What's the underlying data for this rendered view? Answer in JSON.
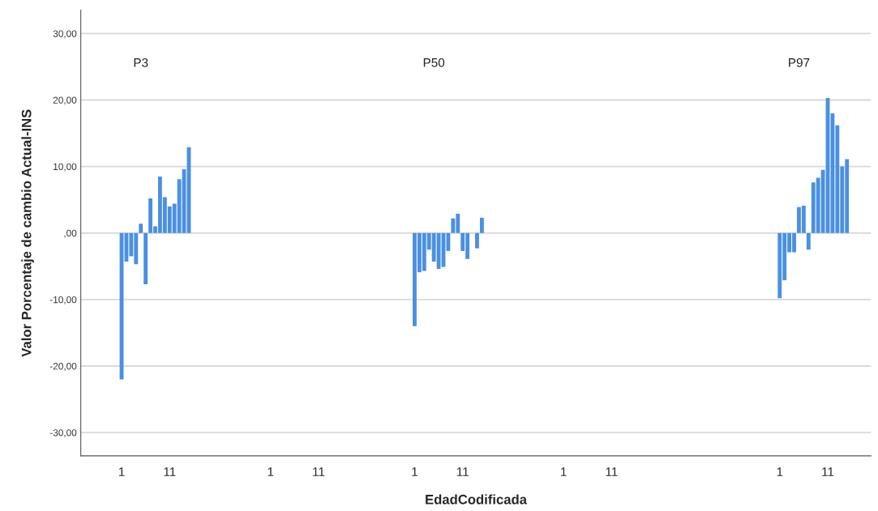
{
  "chart_data": {
    "type": "bar",
    "xlabel": "EdadCodificada",
    "ylabel": "Valor Porcentaje de cambio Actual-INS",
    "annotations": [
      "P3",
      "P50",
      "P97"
    ],
    "categories": [
      "1",
      null,
      null,
      null,
      null,
      null,
      null,
      null,
      null,
      null,
      "11",
      null,
      null,
      null,
      null,
      null,
      null,
      null,
      null,
      null,
      null,
      null,
      null,
      null,
      null,
      null,
      null,
      null,
      null,
      null,
      null,
      "1",
      null,
      null,
      null,
      null,
      null,
      null,
      null,
      null,
      null,
      "11",
      null,
      null,
      null,
      null,
      null,
      null,
      null,
      null,
      null,
      null,
      null,
      null,
      null,
      null,
      null,
      null,
      null,
      null,
      null,
      "1",
      null,
      null,
      null,
      null,
      null,
      null,
      null,
      null,
      null,
      "11",
      null,
      null,
      null,
      null,
      null,
      null,
      null,
      null,
      null,
      null,
      null,
      null,
      null,
      null,
      null,
      null,
      null,
      null,
      null,
      null,
      "1",
      null,
      null,
      null,
      null,
      null,
      null,
      null,
      null,
      null,
      "11",
      null,
      null,
      null,
      null,
      null,
      null,
      null,
      null,
      null,
      null,
      null,
      null,
      null,
      null,
      null,
      null,
      null,
      null,
      null,
      null,
      null,
      null,
      null,
      null,
      null,
      null,
      null,
      null,
      null,
      null,
      null,
      null,
      null,
      null,
      "1",
      null,
      null,
      null,
      null,
      null,
      null,
      null,
      null,
      null,
      "11",
      null,
      null,
      null,
      null
    ],
    "series": [
      {
        "color": "#4a90e2",
        "values": [
          -22.0,
          -4.3,
          -3.5,
          -4.7,
          1.4,
          -7.7,
          5.2,
          1.0,
          8.5,
          5.4,
          4.0,
          4.4,
          8.1,
          9.6,
          12.9,
          null,
          null,
          null,
          null,
          null,
          null,
          null,
          null,
          null,
          null,
          null,
          null,
          null,
          null,
          null,
          null,
          null,
          null,
          null,
          null,
          null,
          null,
          null,
          null,
          null,
          null,
          null,
          null,
          null,
          null,
          null,
          null,
          null,
          null,
          null,
          null,
          null,
          null,
          null,
          null,
          null,
          null,
          null,
          null,
          null,
          null,
          -14.0,
          -5.9,
          -5.7,
          -2.5,
          -4.3,
          -5.4,
          -5.1,
          -2.7,
          2.2,
          2.9,
          -2.7,
          -3.9,
          null,
          -2.3,
          2.3,
          null,
          null,
          null,
          null,
          null,
          null,
          null,
          null,
          null,
          null,
          null,
          null,
          null,
          null,
          null,
          null,
          null,
          null,
          null,
          null,
          null,
          null,
          null,
          null,
          null,
          null,
          null,
          null,
          null,
          null,
          null,
          null,
          null,
          null,
          null,
          null,
          null,
          null,
          null,
          null,
          null,
          null,
          null,
          null,
          null,
          null,
          null,
          null,
          null,
          null,
          null,
          null,
          null,
          null,
          null,
          null,
          null,
          null,
          null,
          null,
          null,
          -9.8,
          -7.1,
          -2.9,
          -2.9,
          3.9,
          4.1,
          -2.5,
          7.6,
          8.3,
          9.5,
          20.3,
          18.0,
          16.2,
          10.0,
          11.1
        ]
      }
    ],
    "ylim": [
      -33.5,
      33.5
    ],
    "yticks": [
      {
        "value": -30,
        "label": "-30,00"
      },
      {
        "value": -20,
        "label": "-20,00"
      },
      {
        "value": -10,
        "label": "-10,00"
      },
      {
        "value": 0,
        "label": ",00"
      },
      {
        "value": 10,
        "label": "10,00"
      },
      {
        "value": 20,
        "label": "20,00"
      },
      {
        "value": 30,
        "label": "30,00"
      }
    ],
    "grid": "y",
    "legend": false
  }
}
